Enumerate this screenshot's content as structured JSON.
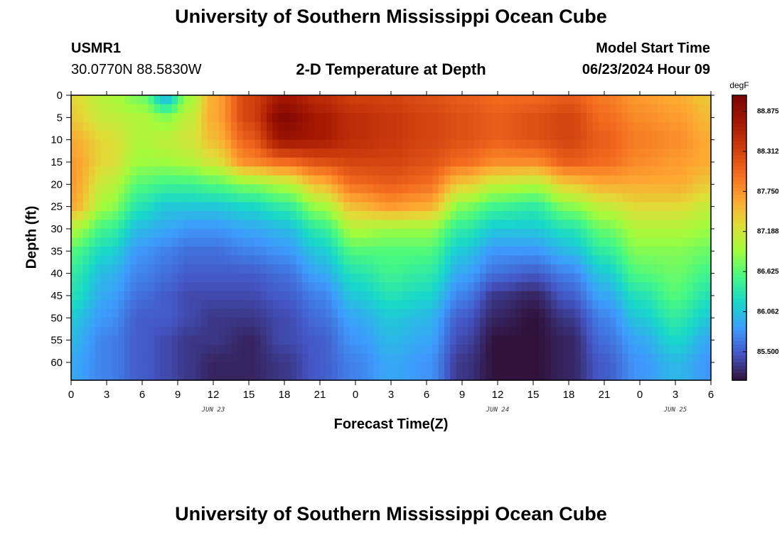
{
  "header": {
    "title": "University of Southern Mississippi Ocean Cube",
    "station_id": "USMR1",
    "coords": "30.0770N  88.5830W",
    "subtitle": "2-D Temperature at Depth",
    "model_label": "Model Start Time",
    "model_time": "06/23/2024 Hour 09"
  },
  "footer": {
    "title": "University of Southern Mississippi Ocean Cube"
  },
  "chart_data": {
    "type": "heatmap",
    "title": "2-D Temperature at Depth",
    "xlabel": "Forecast Time(Z)",
    "ylabel": "Depth (ft)",
    "units": "degF",
    "x_hours_range": [
      0,
      54
    ],
    "x_tick_labels": [
      "0",
      "3",
      "6",
      "9",
      "12",
      "15",
      "18",
      "21",
      "0",
      "3",
      "6",
      "9",
      "12",
      "15",
      "18",
      "21",
      "0",
      "3",
      "6"
    ],
    "date_labels": [
      {
        "hour": 12,
        "label": "JUN 23"
      },
      {
        "hour": 36,
        "label": "JUN 24"
      },
      {
        "hour": 51,
        "label": "JUN 25"
      }
    ],
    "y_range_ft": [
      0,
      64
    ],
    "y_ticks": [
      0,
      5,
      10,
      15,
      20,
      25,
      30,
      35,
      40,
      45,
      50,
      55,
      60
    ],
    "colorbar": {
      "label": "degF",
      "min": 85.1,
      "max": 89.1,
      "ticks": [
        85.5,
        86.062,
        86.625,
        87.188,
        87.75,
        88.312,
        88.875
      ],
      "tick_labels": [
        "85.500",
        "86.062",
        "86.625",
        "87.188",
        "87.750",
        "88.312",
        "88.875"
      ],
      "colors": [
        "#30123b",
        "#4455c4",
        "#3e9bfe",
        "#18d7cb",
        "#46f884",
        "#a2fc3c",
        "#e1dd37",
        "#fea431",
        "#f26a1e",
        "#cb3a0c",
        "#a11602",
        "#7a0403"
      ]
    },
    "profiles": [
      {
        "hour": 0,
        "depths": [
          0,
          5,
          10,
          15,
          20,
          25,
          30,
          35,
          40,
          45,
          50,
          55,
          60,
          64
        ],
        "temps": [
          87.3,
          87.4,
          87.6,
          87.7,
          87.7,
          87.6,
          87.0,
          86.6,
          86.4,
          86.3,
          86.1,
          86.0,
          85.9,
          85.9
        ]
      },
      {
        "hour": 3,
        "depths": [
          0,
          5,
          10,
          15,
          20,
          25,
          30,
          35,
          40,
          45,
          50,
          55,
          60,
          64
        ],
        "temps": [
          87.0,
          87.1,
          87.3,
          87.3,
          87.1,
          86.9,
          86.5,
          86.2,
          86.0,
          85.9,
          85.8,
          85.7,
          85.7,
          85.7
        ]
      },
      {
        "hour": 6,
        "depths": [
          0,
          5,
          10,
          15,
          20,
          25,
          30,
          35,
          40,
          45,
          50,
          55,
          60,
          64
        ],
        "temps": [
          86.7,
          87.0,
          87.0,
          86.9,
          86.6,
          86.3,
          86.0,
          85.8,
          85.7,
          85.6,
          85.5,
          85.5,
          85.5,
          85.5
        ]
      },
      {
        "hour": 8,
        "depths": [
          0,
          5,
          10,
          15,
          20,
          25,
          30,
          35,
          40,
          45,
          50,
          55,
          60,
          64
        ],
        "temps": [
          85.9,
          86.8,
          87.1,
          86.9,
          86.5,
          86.1,
          85.9,
          85.7,
          85.6,
          85.5,
          85.5,
          85.4,
          85.4,
          85.4
        ]
      },
      {
        "hour": 10,
        "depths": [
          0,
          5,
          10,
          15,
          20,
          25,
          30,
          35,
          40,
          45,
          50,
          55,
          60,
          64
        ],
        "temps": [
          86.9,
          87.1,
          87.2,
          87.0,
          86.5,
          86.1,
          85.8,
          85.6,
          85.5,
          85.4,
          85.4,
          85.3,
          85.3,
          85.3
        ]
      },
      {
        "hour": 12,
        "depths": [
          0,
          5,
          10,
          15,
          20,
          25,
          30,
          35,
          40,
          45,
          50,
          55,
          60,
          64
        ],
        "temps": [
          87.6,
          87.6,
          87.5,
          87.2,
          86.6,
          86.1,
          85.8,
          85.6,
          85.5,
          85.4,
          85.3,
          85.3,
          85.2,
          85.2
        ]
      },
      {
        "hour": 15,
        "depths": [
          0,
          5,
          10,
          15,
          20,
          25,
          30,
          35,
          40,
          45,
          50,
          55,
          60,
          64
        ],
        "temps": [
          88.3,
          88.3,
          88.1,
          87.8,
          86.8,
          86.2,
          85.9,
          85.7,
          85.5,
          85.4,
          85.3,
          85.2,
          85.2,
          85.2
        ]
      },
      {
        "hour": 18,
        "depths": [
          0,
          5,
          10,
          15,
          20,
          25,
          30,
          35,
          40,
          45,
          50,
          55,
          60,
          64
        ],
        "temps": [
          88.7,
          89.0,
          88.8,
          88.0,
          87.0,
          86.4,
          86.0,
          85.8,
          85.6,
          85.5,
          85.4,
          85.4,
          85.3,
          85.3
        ]
      },
      {
        "hour": 21,
        "depths": [
          0,
          5,
          10,
          15,
          20,
          25,
          30,
          35,
          40,
          45,
          50,
          55,
          60,
          64
        ],
        "temps": [
          88.5,
          88.7,
          88.7,
          88.2,
          87.5,
          86.9,
          86.4,
          86.1,
          85.9,
          85.7,
          85.6,
          85.5,
          85.5,
          85.5
        ]
      },
      {
        "hour": 24,
        "depths": [
          0,
          5,
          10,
          15,
          20,
          25,
          30,
          35,
          40,
          45,
          50,
          55,
          60,
          64
        ],
        "temps": [
          88.3,
          88.5,
          88.5,
          88.3,
          88.0,
          87.5,
          87.0,
          86.6,
          86.3,
          86.1,
          85.9,
          85.8,
          85.7,
          85.7
        ]
      },
      {
        "hour": 27,
        "depths": [
          0,
          5,
          10,
          15,
          20,
          25,
          30,
          35,
          40,
          45,
          50,
          55,
          60,
          64
        ],
        "temps": [
          88.3,
          88.4,
          88.4,
          88.3,
          88.1,
          87.7,
          86.9,
          86.6,
          86.5,
          86.3,
          86.1,
          86.0,
          85.9,
          85.9
        ]
      },
      {
        "hour": 30,
        "depths": [
          0,
          5,
          10,
          15,
          20,
          25,
          30,
          35,
          40,
          45,
          50,
          55,
          60,
          64
        ],
        "temps": [
          88.2,
          88.3,
          88.3,
          88.2,
          88.0,
          87.6,
          86.9,
          86.6,
          86.4,
          86.2,
          86.0,
          85.9,
          85.8,
          85.8
        ]
      },
      {
        "hour": 33,
        "depths": [
          0,
          5,
          10,
          15,
          20,
          25,
          30,
          35,
          40,
          45,
          50,
          55,
          60,
          64
        ],
        "temps": [
          88.1,
          88.2,
          88.2,
          88.0,
          87.4,
          86.8,
          86.4,
          86.1,
          85.9,
          85.7,
          85.5,
          85.4,
          85.3,
          85.3
        ]
      },
      {
        "hour": 36,
        "depths": [
          0,
          5,
          10,
          15,
          20,
          25,
          30,
          35,
          40,
          45,
          50,
          55,
          60,
          64
        ],
        "temps": [
          88.0,
          88.1,
          88.1,
          87.8,
          87.1,
          86.5,
          86.1,
          85.8,
          85.6,
          85.3,
          85.2,
          85.1,
          85.1,
          85.1
        ]
      },
      {
        "hour": 39,
        "depths": [
          0,
          5,
          10,
          15,
          20,
          25,
          30,
          35,
          40,
          45,
          50,
          55,
          60,
          64
        ],
        "temps": [
          88.0,
          88.2,
          88.2,
          87.8,
          87.0,
          86.4,
          86.1,
          85.8,
          85.5,
          85.2,
          85.1,
          85.1,
          85.1,
          85.1
        ]
      },
      {
        "hour": 42,
        "depths": [
          0,
          5,
          10,
          15,
          20,
          25,
          30,
          35,
          40,
          45,
          50,
          55,
          60,
          64
        ],
        "temps": [
          88.1,
          88.3,
          88.3,
          88.1,
          87.4,
          86.8,
          86.3,
          86.0,
          85.7,
          85.5,
          85.3,
          85.2,
          85.2,
          85.2
        ]
      },
      {
        "hour": 45,
        "depths": [
          0,
          5,
          10,
          15,
          20,
          25,
          30,
          35,
          40,
          45,
          50,
          55,
          60,
          64
        ],
        "temps": [
          87.9,
          88.0,
          88.1,
          88.0,
          87.6,
          87.1,
          86.7,
          86.4,
          86.1,
          85.9,
          85.7,
          85.6,
          85.5,
          85.5
        ]
      },
      {
        "hour": 48,
        "depths": [
          0,
          5,
          10,
          15,
          20,
          25,
          30,
          35,
          40,
          45,
          50,
          55,
          60,
          64
        ],
        "temps": [
          87.7,
          87.8,
          87.9,
          87.8,
          87.6,
          87.3,
          87.0,
          86.8,
          86.6,
          86.3,
          86.1,
          85.9,
          85.8,
          85.8
        ]
      },
      {
        "hour": 51,
        "depths": [
          0,
          5,
          10,
          15,
          20,
          25,
          30,
          35,
          40,
          45,
          50,
          55,
          60,
          64
        ],
        "temps": [
          87.6,
          87.7,
          87.8,
          87.7,
          87.6,
          87.3,
          87.0,
          86.8,
          86.7,
          86.6,
          86.4,
          86.2,
          86.0,
          86.0
        ]
      },
      {
        "hour": 54,
        "depths": [
          0,
          5,
          10,
          15,
          20,
          25,
          30,
          35,
          40,
          45,
          50,
          55,
          60,
          64
        ],
        "temps": [
          87.4,
          87.5,
          87.6,
          87.6,
          87.4,
          87.1,
          86.9,
          86.7,
          86.5,
          86.3,
          86.1,
          85.9,
          85.8,
          85.8
        ]
      }
    ]
  }
}
